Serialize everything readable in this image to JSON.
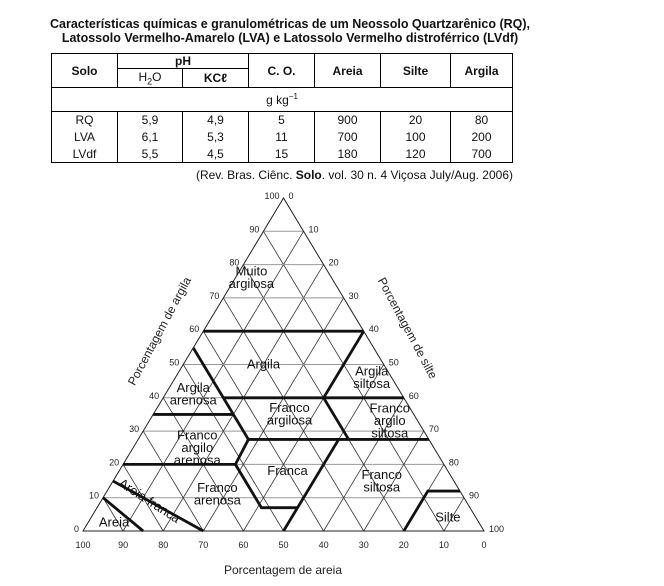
{
  "title": {
    "line1": "Características químicas e granulométricas de um Neossolo Quartzarênico (RQ),",
    "line2": "Latossolo Vermelho-Amarelo (LVA) e Latossolo Vermelho distroférrico (LVdf)"
  },
  "table": {
    "headers": {
      "solo": "Solo",
      "ph": "pH",
      "h2o_main": "H",
      "h2o_sub": "2",
      "h2o_end": "O",
      "kcl": "KCℓ",
      "co": "C. O.",
      "areia": "Areia",
      "silte": "Silte",
      "argila": "Argila"
    },
    "unit_main": "g kg",
    "unit_sup": "−1",
    "rows": [
      [
        "RQ",
        "5,9",
        "4,9",
        "5",
        "900",
        "20",
        "80"
      ],
      [
        "LVA",
        "6,1",
        "5,3",
        "11",
        "700",
        "100",
        "200"
      ],
      [
        "LVdf",
        "5,5",
        "4,5",
        "15",
        "180",
        "120",
        "700"
      ]
    ]
  },
  "citation": {
    "pre": "(Rev. Bras. Ciênc. ",
    "bold": "Solo",
    "post": ". vol. 30 n. 4 Viçosa July/Aug. 2006)"
  },
  "diagram": {
    "axis_clay": "Porcentagem de argila",
    "axis_silt": "Porcentagem de silte",
    "axis_sand": "Porcentagem de areia",
    "clay_ticks": [
      "0",
      "10",
      "20",
      "30",
      "40",
      "50",
      "60",
      "70",
      "80",
      "90",
      "100"
    ],
    "silt_ticks": [
      "0",
      "10",
      "20",
      "30",
      "40",
      "50",
      "60",
      "70",
      "80",
      "90",
      "100"
    ],
    "sand_ticks": [
      "100",
      "90",
      "80",
      "70",
      "60",
      "50",
      "40",
      "30",
      "20",
      "10",
      "0"
    ],
    "regions": [
      {
        "lines": [
          "Muito",
          "argilosa"
        ],
        "sand": 20,
        "clay": 76
      },
      {
        "lines": [
          "Argila"
        ],
        "sand": 30,
        "clay": 50
      },
      {
        "lines": [
          "Argila",
          "siltosa"
        ],
        "sand": 5,
        "clay": 46
      },
      {
        "lines": [
          "Argila",
          "arenosa"
        ],
        "sand": 52,
        "clay": 41
      },
      {
        "lines": [
          "Franco",
          "argilosa"
        ],
        "sand": 31,
        "clay": 35
      },
      {
        "lines": [
          "Franco",
          "argilo",
          "siltosa"
        ],
        "sand": 7,
        "clay": 33
      },
      {
        "lines": [
          "Franco",
          "argilo",
          "arenosa"
        ],
        "sand": 59,
        "clay": 25
      },
      {
        "lines": [
          "Franca"
        ],
        "sand": 40,
        "clay": 18
      },
      {
        "lines": [
          "Franco",
          "siltosa"
        ],
        "sand": 18,
        "clay": 15
      },
      {
        "lines": [
          "Franco",
          "arenosa"
        ],
        "sand": 61,
        "clay": 11
      },
      {
        "lines": [
          "Silte"
        ],
        "sand": 7,
        "clay": 4
      },
      {
        "lines": [
          "Areia"
        ],
        "sand": 91,
        "clay": 2.5
      }
    ],
    "rotated_region": {
      "label": "Areia franca",
      "sand": 80,
      "clay": 8
    },
    "boundaries": [
      [
        [
          40,
          60
        ],
        [
          0,
          60
        ]
      ],
      [
        [
          0,
          60
        ],
        [
          20,
          40
        ]
      ],
      [
        [
          45,
          40
        ],
        [
          0,
          40
        ]
      ],
      [
        [
          45,
          55
        ],
        [
          45,
          27.5
        ]
      ],
      [
        [
          65,
          35
        ],
        [
          45,
          35
        ]
      ],
      [
        [
          45,
          27.5
        ],
        [
          0,
          27.5
        ]
      ],
      [
        [
          20,
          40
        ],
        [
          20,
          27.5
        ]
      ],
      [
        [
          80,
          20
        ],
        [
          52,
          20
        ]
      ],
      [
        [
          45,
          27.5
        ],
        [
          52,
          20
        ],
        [
          52,
          7
        ],
        [
          43,
          7
        ]
      ],
      [
        [
          22.5,
          27.5
        ],
        [
          50,
          0
        ]
      ],
      [
        [
          20,
          0
        ],
        [
          8,
          12
        ],
        [
          0,
          12
        ]
      ],
      [
        [
          85,
          15
        ],
        [
          70,
          0
        ]
      ],
      [
        [
          90,
          10
        ],
        [
          85,
          0
        ]
      ]
    ]
  }
}
